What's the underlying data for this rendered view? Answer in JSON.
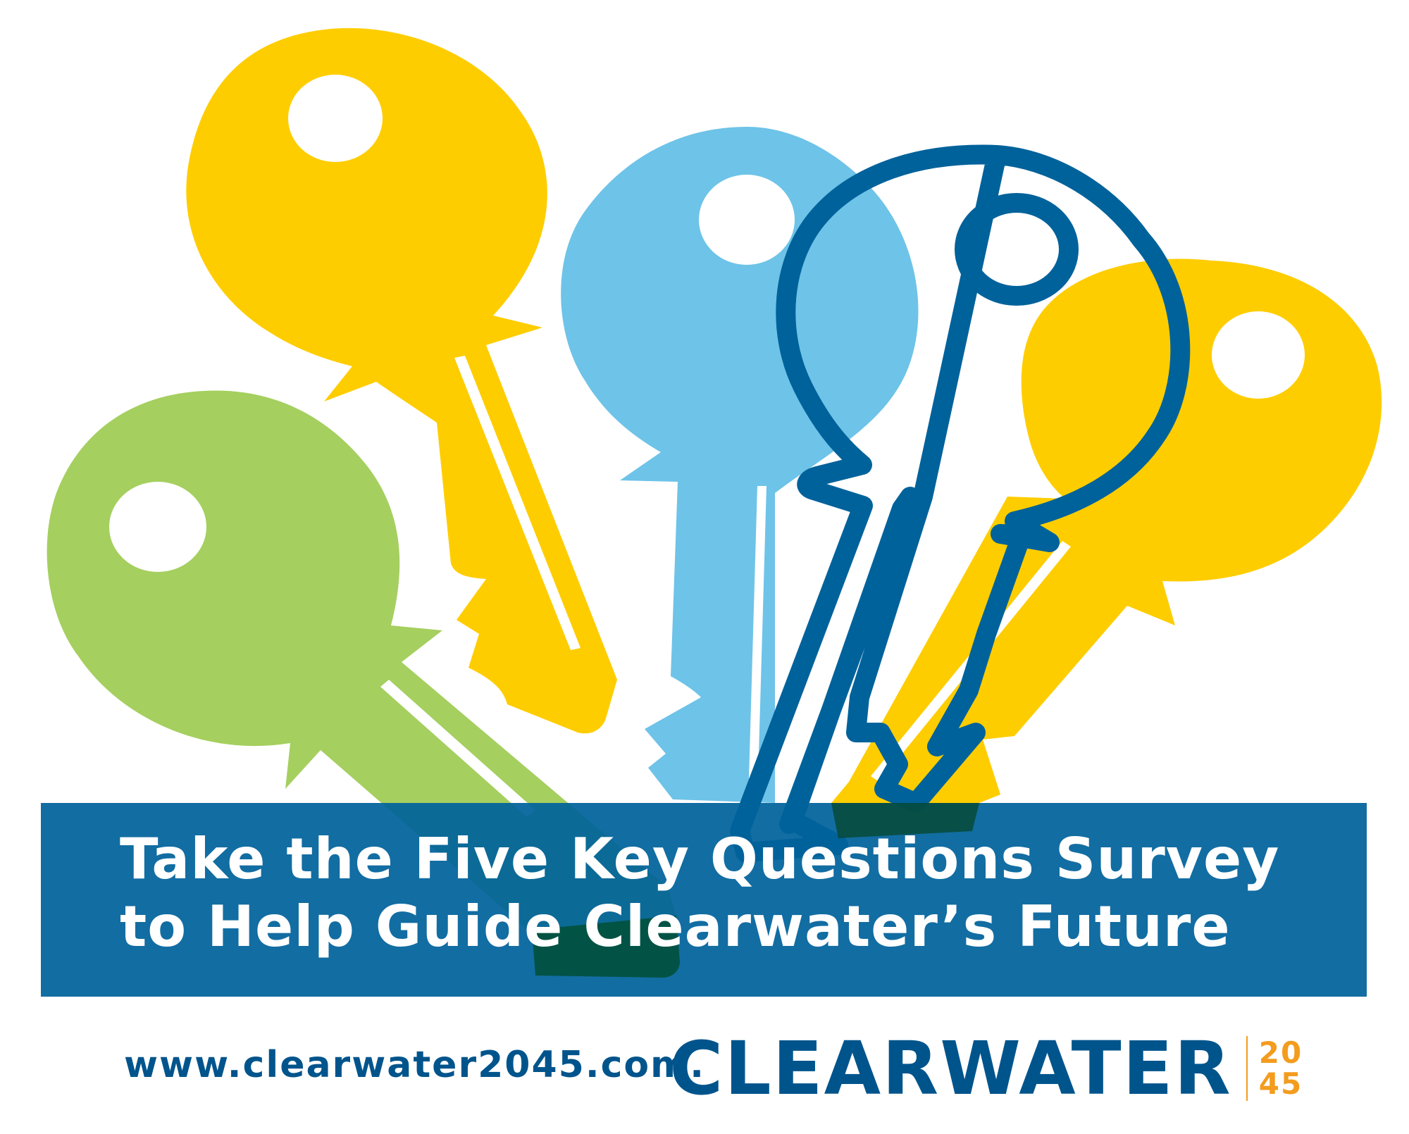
{
  "headline": {
    "line1": "Take the Five Key Questions Survey",
    "line2": "to Help Guide Clearwater’s Future"
  },
  "footer": {
    "website": "www.clearwater2045.com.",
    "logo_word": "CLEARWATER",
    "logo_year_top": "20",
    "logo_year_bottom": "45"
  },
  "colors": {
    "yellow_key": "#fecd00",
    "blue_key": "#6ec3e8",
    "green_key": "#a5cf5f",
    "outline_key": "#00629b",
    "banner": "#00629b",
    "brand_blue": "#00548c",
    "accent_orange": "#f39c1e"
  },
  "icons": [
    "yellow-key-icon",
    "light-blue-key-icon",
    "outlined-key-icon",
    "green-key-icon",
    "yellow-key-right-icon"
  ]
}
